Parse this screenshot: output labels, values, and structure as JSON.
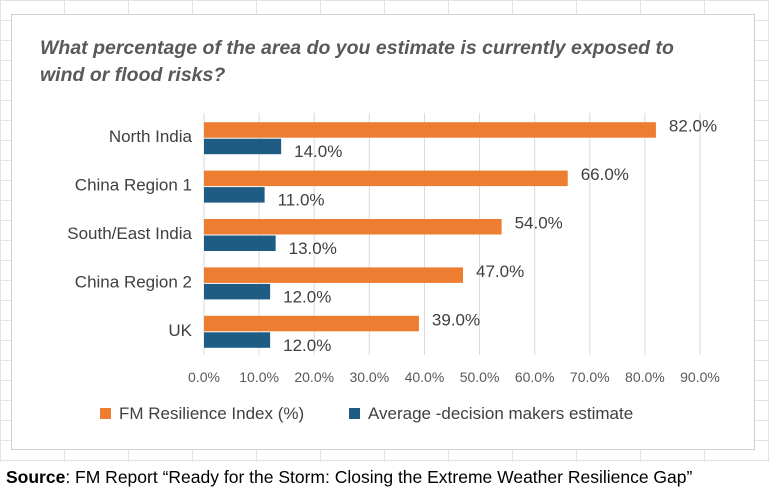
{
  "chart_data": {
    "type": "bar",
    "orientation": "horizontal",
    "title": "What percentage of the area do you estimate is currently exposed to wind or flood risks?",
    "categories": [
      "North India",
      "China Region 1",
      "South/East India",
      "China Region 2",
      "UK"
    ],
    "series": [
      {
        "name": "FM Resilience Index (%)",
        "values": [
          82.0,
          66.0,
          54.0,
          47.0,
          39.0
        ],
        "labels": [
          "82.0%",
          "66.0%",
          "54.0%",
          "47.0%",
          "39.0%"
        ],
        "color": "#ED7D31"
      },
      {
        "name": "Average -decision makers estimate",
        "values": [
          14.0,
          11.0,
          13.0,
          12.0,
          12.0
        ],
        "labels": [
          "14.0%",
          "11.0%",
          "13.0%",
          "12.0%",
          "12.0%"
        ],
        "color": "#1F5C84"
      }
    ],
    "xlim": [
      0,
      90
    ],
    "xticks": [
      0,
      10,
      20,
      30,
      40,
      50,
      60,
      70,
      80,
      90
    ],
    "xtick_labels": [
      "0.0%",
      "10.0%",
      "20.0%",
      "30.0%",
      "40.0%",
      "50.0%",
      "60.0%",
      "70.0%",
      "80.0%",
      "90.0%"
    ],
    "xlabel": "",
    "ylabel": "",
    "grid": true,
    "legend_position": "bottom"
  },
  "source": {
    "label": "Source",
    "text": ": FM Report “Ready for the Storm: Closing the Extreme Weather Resilience Gap”"
  }
}
